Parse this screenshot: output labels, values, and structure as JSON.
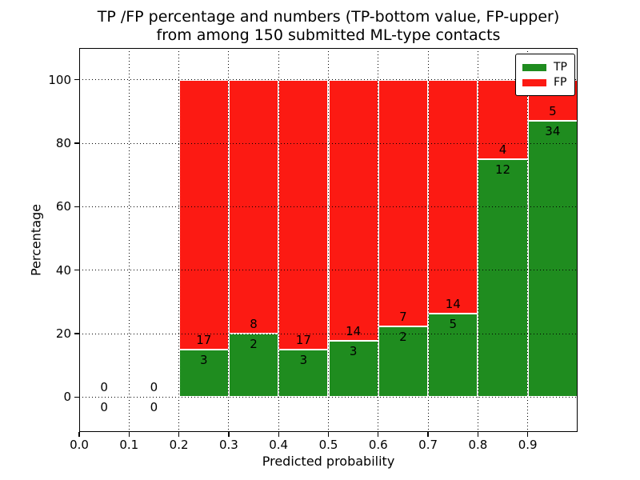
{
  "chart_data": {
    "type": "bar",
    "stacked": true,
    "title": "TP /FP percentage and numbers (TP-bottom value, FP-upper)\nfrom among 150 submitted ML-type contacts",
    "xlabel": "Predicted probability",
    "ylabel": "Percentage",
    "xlim": [
      0.0,
      1.0
    ],
    "ylim": [
      -11,
      110
    ],
    "grid": true,
    "bin_edges": [
      0.0,
      0.1,
      0.2,
      0.3,
      0.4,
      0.5,
      0.6,
      0.7,
      0.8,
      0.9,
      1.0
    ],
    "x_ticks": [
      {
        "value": 0.0,
        "label": "0.0"
      },
      {
        "value": 0.1,
        "label": "0.1"
      },
      {
        "value": 0.2,
        "label": "0.2"
      },
      {
        "value": 0.3,
        "label": "0.3"
      },
      {
        "value": 0.4,
        "label": "0.4"
      },
      {
        "value": 0.5,
        "label": "0.5"
      },
      {
        "value": 0.6,
        "label": "0.6"
      },
      {
        "value": 0.7,
        "label": "0.7"
      },
      {
        "value": 0.8,
        "label": "0.8"
      },
      {
        "value": 0.9,
        "label": "0.9"
      }
    ],
    "y_ticks": [
      {
        "value": 0,
        "label": "0"
      },
      {
        "value": 20,
        "label": "20"
      },
      {
        "value": 40,
        "label": "40"
      },
      {
        "value": 60,
        "label": "60"
      },
      {
        "value": 80,
        "label": "80"
      },
      {
        "value": 100,
        "label": "100"
      }
    ],
    "series": [
      {
        "name": "TP",
        "color": "#1f8c1f",
        "counts": [
          0,
          0,
          3,
          2,
          3,
          3,
          2,
          5,
          12,
          34
        ]
      },
      {
        "name": "FP",
        "color": "#fc1a13",
        "counts": [
          0,
          0,
          17,
          8,
          17,
          14,
          7,
          14,
          4,
          5
        ]
      }
    ],
    "legend": {
      "position": "upper-right",
      "entries": [
        {
          "label": "TP",
          "color": "#1f8c1f"
        },
        {
          "label": "FP",
          "color": "#fc1a13"
        }
      ]
    }
  }
}
